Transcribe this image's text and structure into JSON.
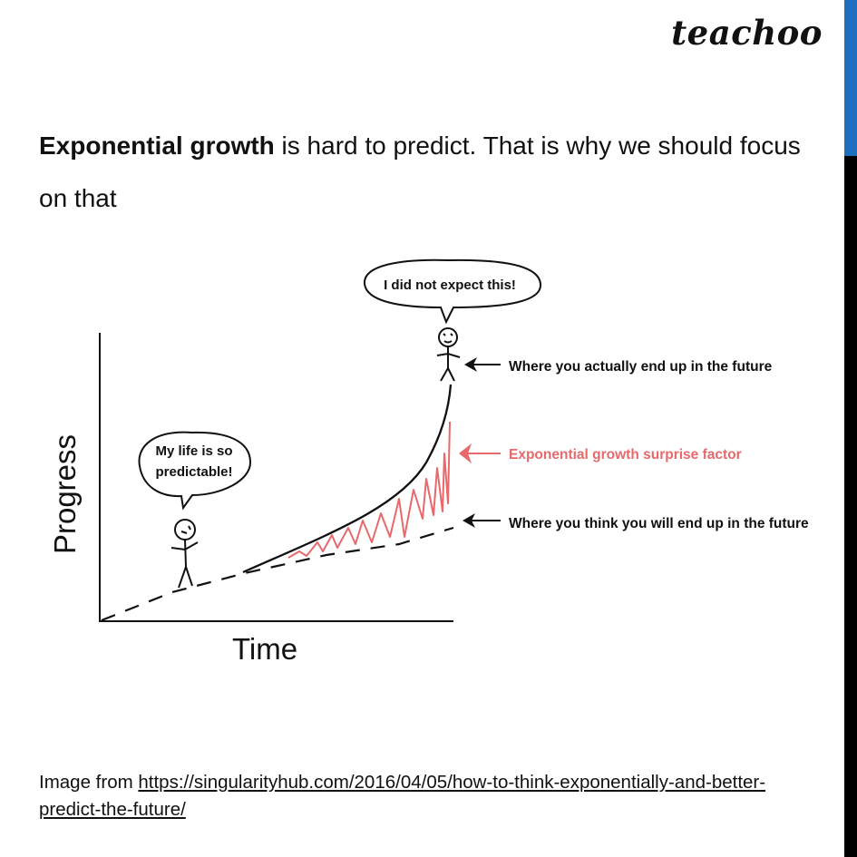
{
  "brand": {
    "logo_text": "teachoo"
  },
  "heading": {
    "bold": "Exponential growth",
    "rest": " is hard to predict. That is why we should focus on that"
  },
  "diagram": {
    "axis_x_label": "Time",
    "axis_y_label": "Progress",
    "bubble_left": [
      "My life is so",
      "predictable!"
    ],
    "bubble_top": "I did not expect this!",
    "annotation_actual": "Where you actually end up in the future",
    "annotation_surprise": "Exponential growth surprise factor",
    "annotation_think": "Where you think you will end up in the future",
    "colors": {
      "ink": "#111111",
      "surprise": "#e8696b"
    }
  },
  "credit": {
    "prefix": "Image from ",
    "link": "https://singularityhub.com/2016/04/05/how-to-think-exponentially-and-better-predict-the-future/"
  }
}
